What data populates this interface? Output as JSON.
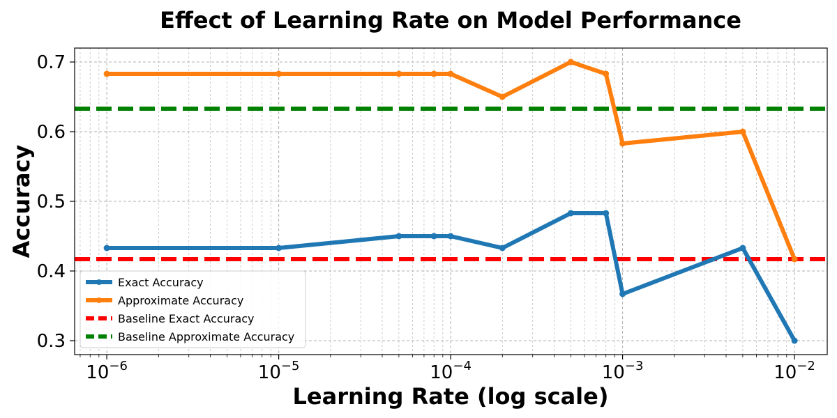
{
  "chart_data": {
    "type": "line",
    "title": "Effect of Learning Rate on Model Performance",
    "xlabel": "Learning Rate (log scale)",
    "ylabel": "Accuracy",
    "x_scale": "log",
    "xlim": [
      6.5e-07,
      0.0155
    ],
    "ylim": [
      0.28,
      0.72
    ],
    "x_tick_labels": [
      {
        "value": 1e-06,
        "base": "10",
        "exp": "−6"
      },
      {
        "value": 1e-05,
        "base": "10",
        "exp": "−5"
      },
      {
        "value": 0.0001,
        "base": "10",
        "exp": "−4"
      },
      {
        "value": 0.001,
        "base": "10",
        "exp": "−3"
      },
      {
        "value": 0.01,
        "base": "10",
        "exp": "−2"
      }
    ],
    "y_ticks": [
      0.3,
      0.4,
      0.5,
      0.6,
      0.7
    ],
    "y_tick_labels": [
      "0.3",
      "0.4",
      "0.5",
      "0.6",
      "0.7"
    ],
    "grid": "both",
    "legend_position": "lower-left",
    "x": [
      1e-06,
      1e-05,
      5e-05,
      8e-05,
      0.0001,
      0.0002,
      0.0005,
      0.0008,
      0.001,
      0.005,
      0.01
    ],
    "series": [
      {
        "name": "Exact Accuracy",
        "color": "#1f77b4",
        "style": "solid-marker",
        "values": [
          0.433,
          0.433,
          0.45,
          0.45,
          0.45,
          0.433,
          0.483,
          0.483,
          0.367,
          0.433,
          0.3
        ]
      },
      {
        "name": "Approximate Accuracy",
        "color": "#ff7f0e",
        "style": "solid-marker",
        "values": [
          0.683,
          0.683,
          0.683,
          0.683,
          0.683,
          0.65,
          0.7,
          0.683,
          0.583,
          0.6,
          0.417
        ]
      }
    ],
    "baselines": [
      {
        "name": "Baseline Exact Accuracy",
        "color": "#ff0000",
        "value": 0.417
      },
      {
        "name": "Baseline Approximate Accuracy",
        "color": "#008000",
        "value": 0.633
      }
    ]
  }
}
